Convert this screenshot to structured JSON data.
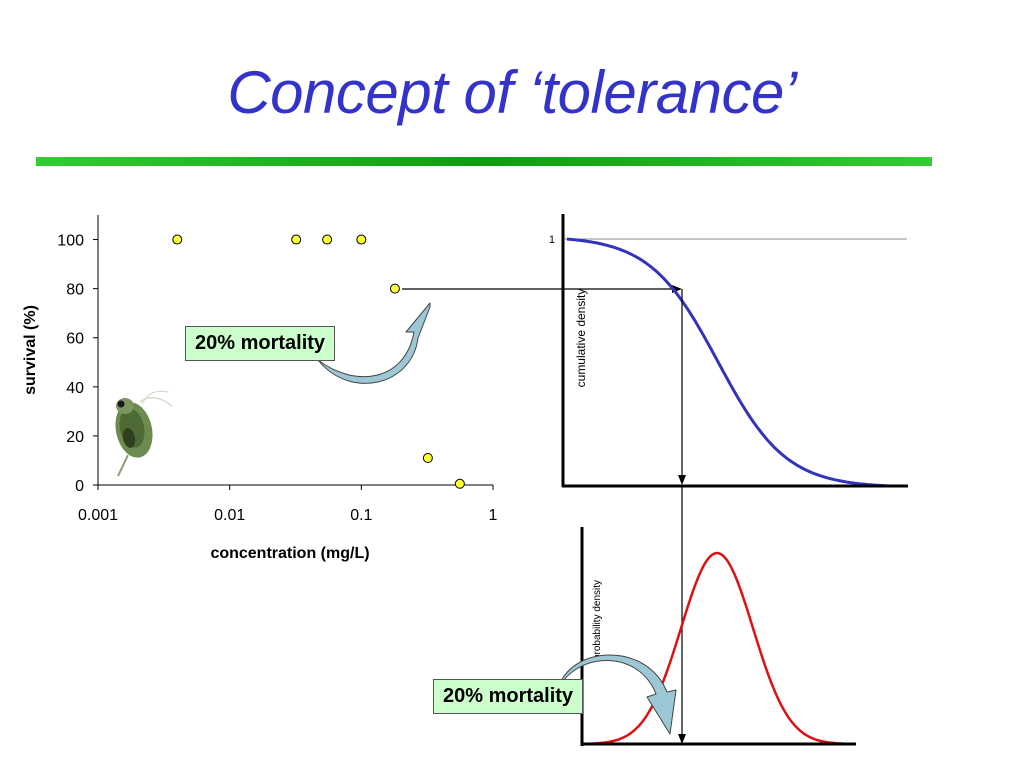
{
  "slide": {
    "title": "Concept of ‘tolerance’",
    "callout_top": "20% mortality",
    "callout_bottom": "20% mortality"
  },
  "colors": {
    "title": "#3333cc",
    "rule": "#22aa22",
    "points_fill": "#ffff33",
    "cdf_curve": "#3333bb",
    "pdf_curve": "#dd1111",
    "callout_bg": "#ccffcc",
    "arrow_fill": "#9cc7d4"
  },
  "chart_data": [
    {
      "type": "scatter",
      "xlabel": "concentration (mg/L)",
      "ylabel": "survival (%)",
      "xscale": "log",
      "xlim": [
        0.001,
        1
      ],
      "ylim": [
        0,
        110
      ],
      "xticks": [
        "0.001",
        "0.01",
        "0.1",
        "1"
      ],
      "yticks": [
        "0",
        "20",
        "40",
        "60",
        "80",
        "100"
      ],
      "points": [
        {
          "x": 0.004,
          "y": 100
        },
        {
          "x": 0.032,
          "y": 100
        },
        {
          "x": 0.055,
          "y": 100
        },
        {
          "x": 0.1,
          "y": 100
        },
        {
          "x": 0.18,
          "y": 80
        },
        {
          "x": 0.32,
          "y": 11
        },
        {
          "x": 0.56,
          "y": 0.5
        }
      ]
    },
    {
      "type": "line",
      "ylabel": "cumulative density",
      "ytick_label": "1",
      "description_free": true,
      "curve": "decreasing-sigmoid",
      "reference_level": 1,
      "marked_level": 0.8
    },
    {
      "type": "line",
      "ylabel": "probability density",
      "curve": "bell",
      "marked_fraction": 0.2
    }
  ]
}
